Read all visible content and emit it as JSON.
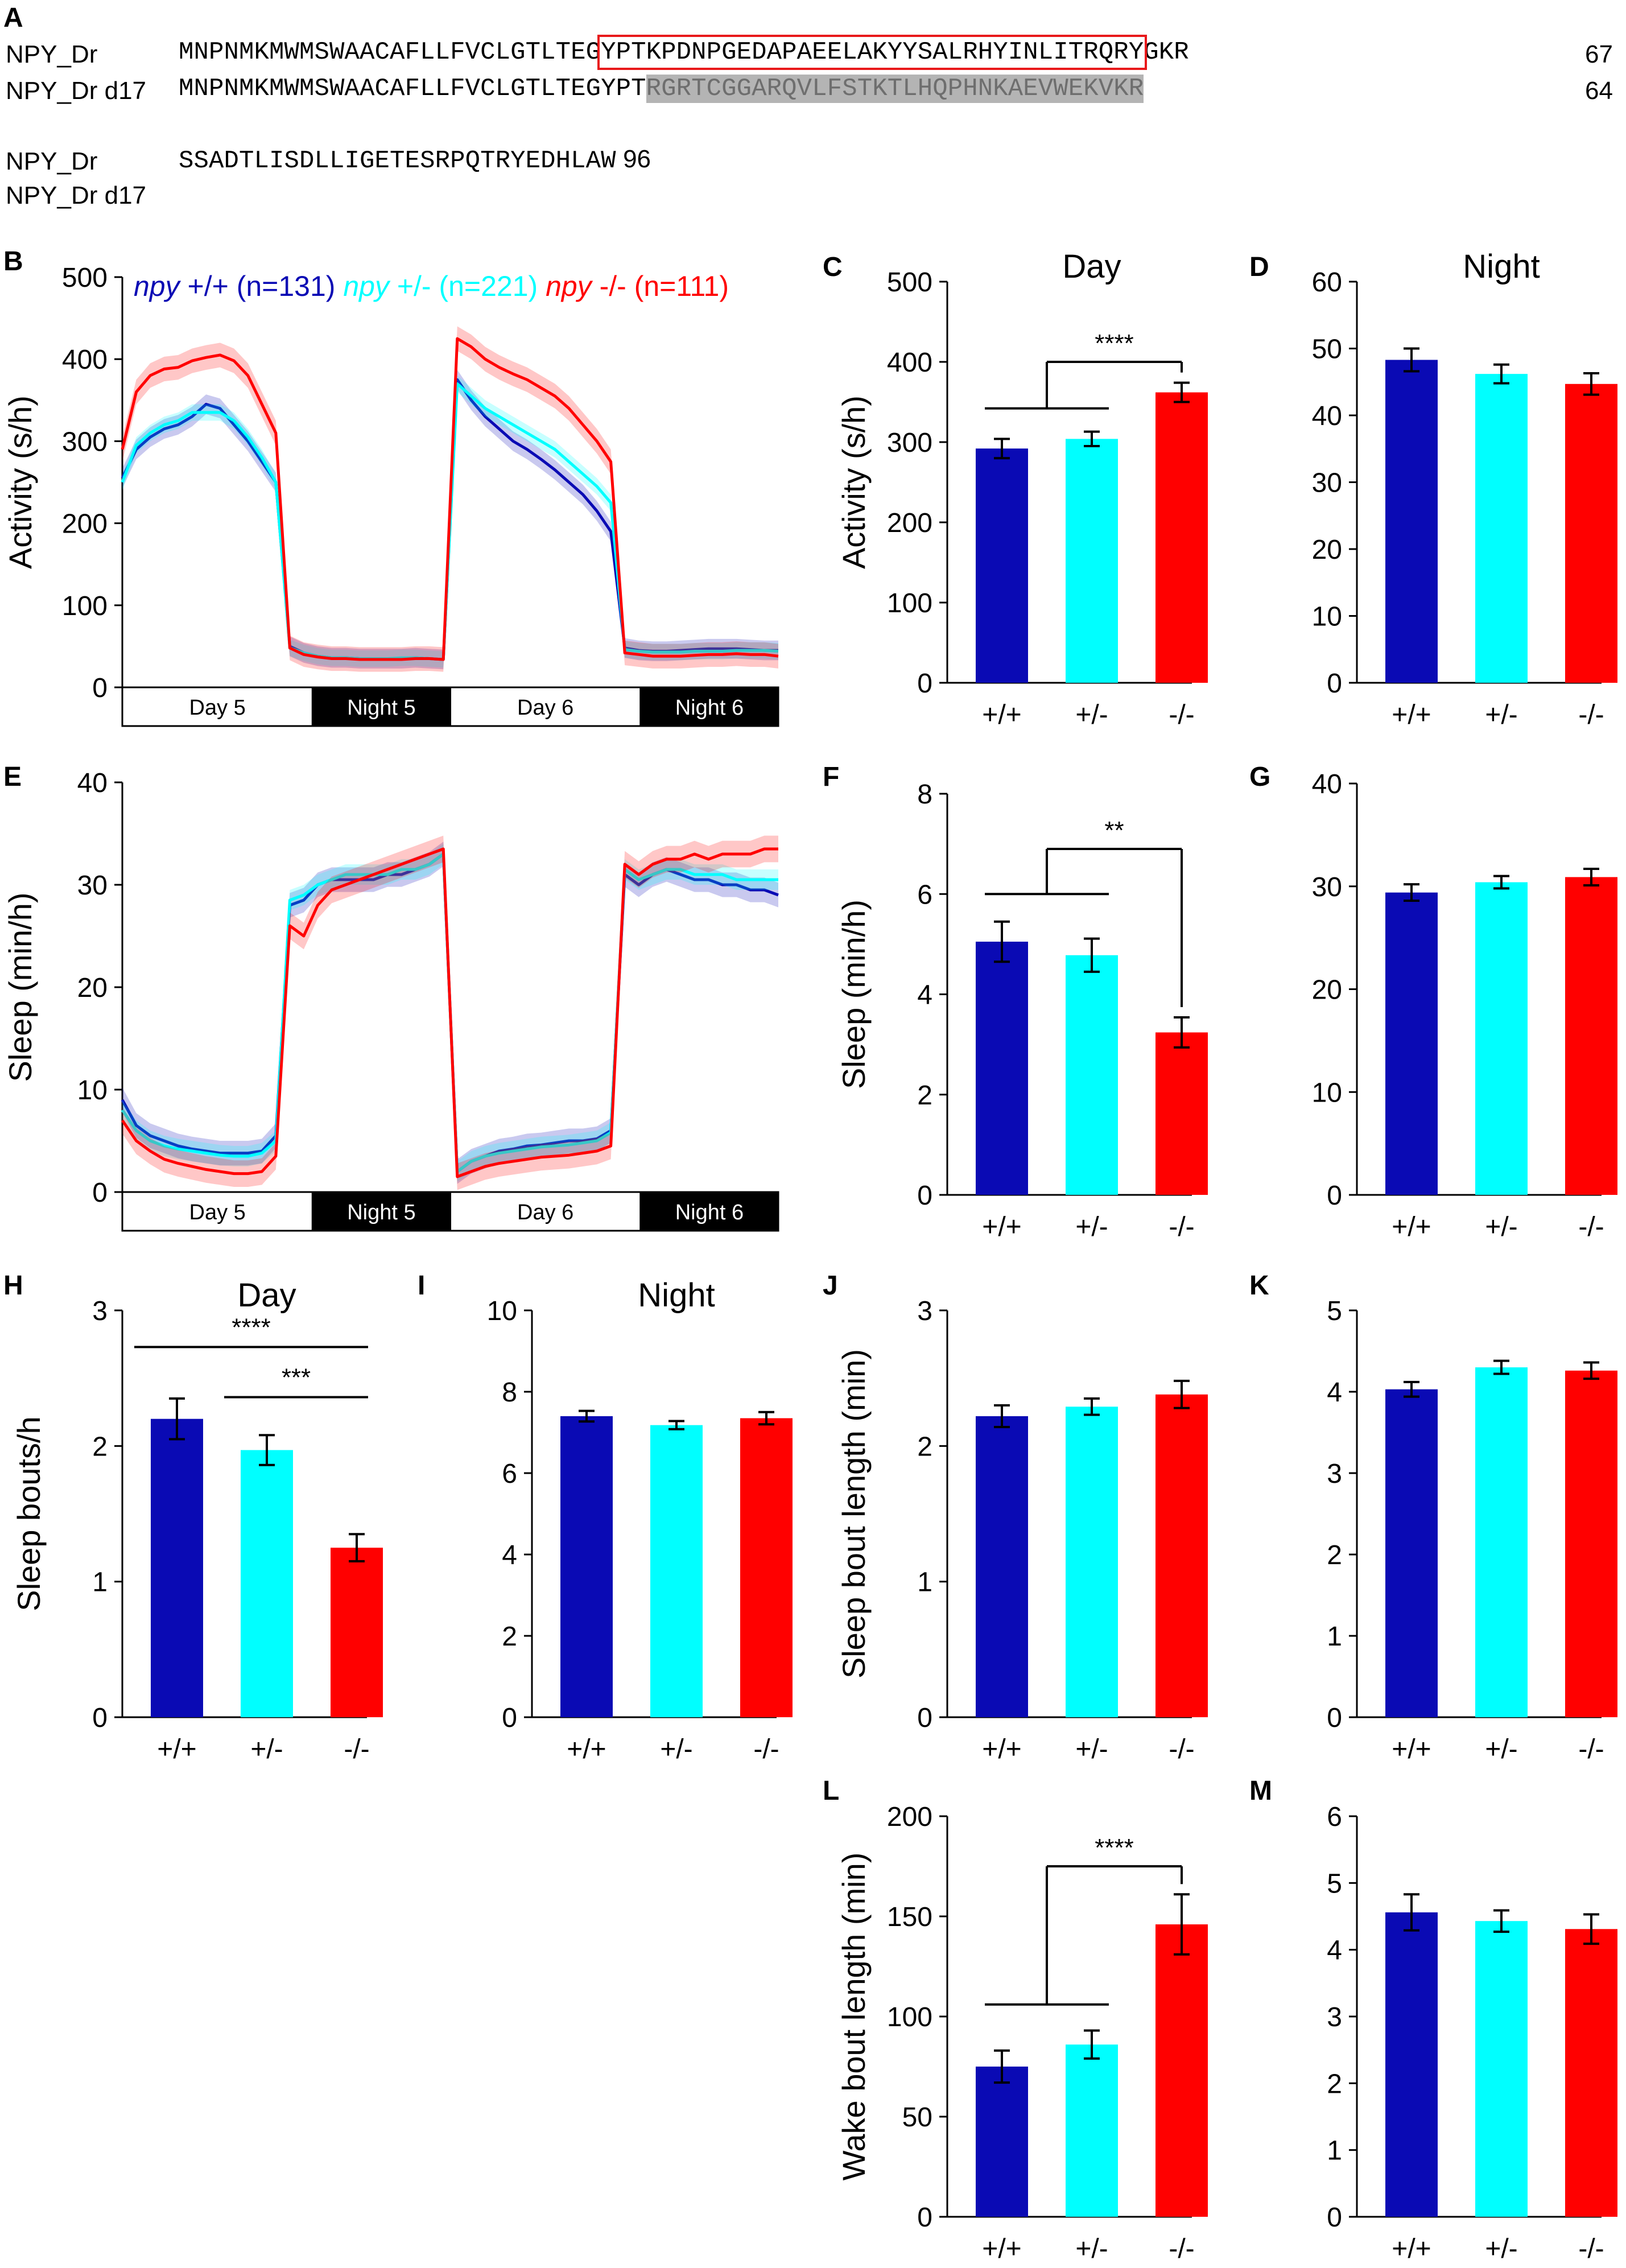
{
  "panel_letters": [
    "A",
    "B",
    "C",
    "D",
    "E",
    "F",
    "G",
    "H",
    "I",
    "J",
    "K",
    "L",
    "M"
  ],
  "sequence_panel": {
    "rows": [
      {
        "name": "NPY_Dr",
        "pre": "MNPNMKMWMSWAACAFLLFVCLGTLTEG",
        "boxed": "YPTKPDNPGEDAPAEELAKYYSALRHYINLITRQRY",
        "post": "GKR",
        "length": "67"
      },
      {
        "name": "NPY_Dr d17",
        "pre": "MNPNMKMWMSWAACAFLLFVCLGTLTEGYPT",
        "shaded": "RGRTCGGARQVLFSTKTLHQPHNKAEVWEKVKR",
        "length": "64"
      },
      {
        "name": "NPY_Dr",
        "pre": "SSADTLISDLLIGETESRPQTRYEDHLAW",
        "length": "96"
      },
      {
        "name": "NPY_Dr d17",
        "pre": ""
      }
    ],
    "box_color": "#e8191b",
    "shade_color": "#b4b4b4"
  },
  "colors": {
    "wt": "#0a0ab4",
    "het": "#00ffff",
    "mut": "#ff0000"
  },
  "chart_data": [
    {
      "id": "B",
      "type": "line",
      "ylabel": "Activity (s/h)",
      "ylim": [
        0,
        500
      ],
      "yticks": [
        0,
        100,
        200,
        300,
        400,
        500
      ],
      "time_blocks": [
        {
          "label": "Day 5",
          "dark": false
        },
        {
          "label": "Night 5",
          "dark": true
        },
        {
          "label": "Day 6",
          "dark": false
        },
        {
          "label": "Night 6",
          "dark": true
        }
      ],
      "legend": [
        {
          "italic": "npy",
          "rest": " +/+ (n=131)",
          "color": "#0a0ab4"
        },
        {
          "italic": "npy",
          "rest": " +/- (n=221)",
          "color": "#00ffff"
        },
        {
          "italic": "npy",
          "rest": " -/- (n=111)",
          "color": "#ff0000"
        }
      ],
      "x": [
        0,
        1,
        2,
        3,
        4,
        5,
        6,
        7,
        8,
        9,
        10,
        11,
        12,
        13,
        14,
        15,
        16,
        17,
        18,
        19,
        20,
        21,
        22,
        23,
        24,
        25,
        26,
        27,
        28,
        29,
        30,
        31,
        32,
        33,
        34,
        35,
        36,
        37,
        38,
        39,
        40,
        41,
        42,
        43,
        44,
        45,
        46,
        47
      ],
      "series": [
        {
          "color": "#0a0ab4",
          "sem": 12,
          "values": [
            255,
            290,
            305,
            315,
            320,
            330,
            345,
            340,
            320,
            300,
            275,
            250,
            50,
            42,
            38,
            36,
            36,
            35,
            35,
            35,
            35,
            36,
            35,
            34,
            375,
            350,
            330,
            315,
            300,
            290,
            278,
            265,
            250,
            235,
            215,
            190,
            48,
            45,
            44,
            44,
            45,
            46,
            47,
            47,
            47,
            46,
            45,
            45
          ]
        },
        {
          "color": "#00ffff",
          "sem": 10,
          "values": [
            250,
            295,
            310,
            320,
            325,
            335,
            335,
            335,
            325,
            305,
            280,
            250,
            48,
            42,
            38,
            36,
            36,
            35,
            35,
            35,
            36,
            36,
            35,
            34,
            370,
            355,
            340,
            330,
            320,
            310,
            300,
            290,
            275,
            260,
            245,
            225,
            46,
            44,
            43,
            43,
            43,
            44,
            44,
            44,
            45,
            45,
            45,
            44
          ]
        },
        {
          "color": "#ff0000",
          "sem": 15,
          "values": [
            290,
            360,
            380,
            388,
            390,
            398,
            402,
            405,
            398,
            380,
            345,
            310,
            48,
            40,
            37,
            35,
            35,
            34,
            34,
            34,
            34,
            35,
            35,
            34,
            425,
            415,
            400,
            390,
            382,
            375,
            365,
            355,
            340,
            320,
            300,
            275,
            42,
            40,
            38,
            38,
            38,
            39,
            40,
            40,
            41,
            40,
            40,
            38
          ]
        }
      ]
    },
    {
      "id": "C",
      "type": "bar",
      "title": "Day",
      "ylabel": "Activity (s/h)",
      "ylim": [
        0,
        500
      ],
      "yticks": [
        0,
        100,
        200,
        300,
        400,
        500
      ],
      "categories": [
        "+/+",
        "+/-",
        "-/-"
      ],
      "values": [
        292,
        304,
        362
      ],
      "errors": [
        12,
        9,
        12
      ],
      "sig": [
        {
          "kind": "group",
          "label": "****",
          "y": 400,
          "bar_y": 342
        }
      ]
    },
    {
      "id": "D",
      "type": "bar",
      "title": "Night",
      "ylabel": "",
      "ylim": [
        0,
        60
      ],
      "yticks": [
        0,
        10,
        20,
        30,
        40,
        50,
        60
      ],
      "categories": [
        "+/+",
        "+/-",
        "-/-"
      ],
      "values": [
        48.3,
        46.2,
        44.7
      ],
      "errors": [
        1.7,
        1.4,
        1.6
      ],
      "sig": []
    },
    {
      "id": "E",
      "type": "line",
      "ylabel": "Sleep (min/h)",
      "ylim": [
        0,
        40
      ],
      "yticks": [
        0,
        10,
        20,
        30,
        40
      ],
      "time_blocks": [
        {
          "label": "Day 5",
          "dark": false
        },
        {
          "label": "Night 5",
          "dark": true
        },
        {
          "label": "Day 6",
          "dark": false
        },
        {
          "label": "Night 6",
          "dark": true
        }
      ],
      "legend": [],
      "x": [
        0,
        1,
        2,
        3,
        4,
        5,
        6,
        7,
        8,
        9,
        10,
        11,
        12,
        13,
        14,
        15,
        16,
        17,
        18,
        19,
        20,
        21,
        22,
        23,
        24,
        25,
        26,
        27,
        28,
        29,
        30,
        31,
        32,
        33,
        34,
        35,
        36,
        37,
        38,
        39,
        40,
        41,
        42,
        43,
        44,
        45,
        46,
        47
      ],
      "series": [
        {
          "color": "#0a0ab4",
          "sem": 1.2,
          "values": [
            9,
            6.5,
            5.5,
            5,
            4.5,
            4.2,
            4,
            3.8,
            3.8,
            3.8,
            4,
            5.5,
            28,
            28.5,
            30,
            30.5,
            30.5,
            30.5,
            30.5,
            31,
            31,
            31.5,
            32,
            33,
            2,
            3,
            3.5,
            4,
            4.2,
            4.5,
            4.6,
            4.8,
            5,
            5,
            5.2,
            6,
            31,
            30,
            31,
            31.5,
            31,
            30.5,
            30.5,
            30,
            30,
            29.5,
            29.5,
            29
          ]
        },
        {
          "color": "#00ffff",
          "sem": 1.0,
          "values": [
            8,
            6,
            5,
            4.5,
            4.2,
            4,
            3.8,
            3.6,
            3.5,
            3.5,
            3.8,
            5,
            28.5,
            29,
            30,
            30.5,
            31,
            31,
            31,
            31,
            31.5,
            31.5,
            32,
            33,
            2,
            3,
            3.5,
            3.8,
            4,
            4.2,
            4.4,
            4.5,
            4.6,
            4.8,
            5,
            5.8,
            31.5,
            30.5,
            31,
            31.5,
            31.5,
            31,
            31,
            31,
            30.5,
            30.5,
            30.5,
            30.5
          ]
        },
        {
          "color": "#ff0000",
          "sem": 1.3,
          "values": [
            7,
            5,
            4,
            3.2,
            2.8,
            2.5,
            2.2,
            2,
            1.8,
            1.8,
            2,
            3.5,
            26,
            25,
            28,
            29.5,
            30,
            30.5,
            31,
            31.5,
            32,
            32.5,
            33,
            33.5,
            1.5,
            2,
            2.5,
            2.8,
            3,
            3.2,
            3.4,
            3.5,
            3.6,
            3.8,
            4,
            4.5,
            32,
            31,
            32,
            32.5,
            32.5,
            33,
            32.5,
            33,
            33,
            33,
            33.5,
            33.5
          ]
        }
      ]
    },
    {
      "id": "F",
      "type": "bar",
      "title": "",
      "ylabel": "Sleep (min/h)",
      "ylim": [
        0,
        8
      ],
      "yticks": [
        0,
        2,
        4,
        6,
        8
      ],
      "categories": [
        "+/+",
        "+/-",
        "-/-"
      ],
      "values": [
        5.05,
        4.78,
        3.24
      ],
      "errors": [
        0.4,
        0.33,
        0.3
      ],
      "sig": [
        {
          "kind": "group",
          "label": "**",
          "y": 6.9,
          "bar_y": 6.0
        }
      ]
    },
    {
      "id": "G",
      "type": "bar",
      "title": "",
      "ylabel": "",
      "ylim": [
        0,
        40
      ],
      "yticks": [
        0,
        10,
        20,
        30,
        40
      ],
      "categories": [
        "+/+",
        "+/-",
        "-/-"
      ],
      "values": [
        29.4,
        30.4,
        30.9
      ],
      "errors": [
        0.8,
        0.6,
        0.8
      ],
      "sig": []
    },
    {
      "id": "H",
      "type": "bar",
      "title": "Day",
      "ylabel": "Sleep bouts/h",
      "ylim": [
        0,
        3
      ],
      "yticks": [
        0,
        1,
        2,
        3
      ],
      "categories": [
        "+/+",
        "+/-",
        "-/-"
      ],
      "values": [
        2.2,
        1.97,
        1.25
      ],
      "errors": [
        0.15,
        0.11,
        0.1
      ],
      "sig": [
        {
          "kind": "line",
          "label": "****",
          "from": 0,
          "to": 2,
          "y": 2.73
        },
        {
          "kind": "line",
          "label": "***",
          "from": 1,
          "to": 2,
          "y": 2.36
        }
      ]
    },
    {
      "id": "I",
      "type": "bar",
      "title": "Night",
      "ylabel": "",
      "ylim": [
        0,
        10
      ],
      "yticks": [
        0,
        2,
        4,
        6,
        8,
        10
      ],
      "categories": [
        "+/+",
        "+/-",
        "-/-"
      ],
      "values": [
        7.4,
        7.18,
        7.35
      ],
      "errors": [
        0.13,
        0.1,
        0.15
      ],
      "sig": []
    },
    {
      "id": "J",
      "type": "bar",
      "title": "",
      "ylabel": "Sleep bout length (min)",
      "ylim": [
        0,
        3
      ],
      "yticks": [
        0,
        1,
        2,
        3
      ],
      "categories": [
        "+/+",
        "+/-",
        "-/-"
      ],
      "values": [
        2.22,
        2.29,
        2.38
      ],
      "errors": [
        0.08,
        0.06,
        0.1
      ],
      "sig": []
    },
    {
      "id": "K",
      "type": "bar",
      "title": "",
      "ylabel": "",
      "ylim": [
        0,
        5
      ],
      "yticks": [
        0,
        1,
        2,
        3,
        4,
        5
      ],
      "categories": [
        "+/+",
        "+/-",
        "-/-"
      ],
      "values": [
        4.03,
        4.3,
        4.26
      ],
      "errors": [
        0.09,
        0.08,
        0.1
      ],
      "sig": []
    },
    {
      "id": "L",
      "type": "bar",
      "title": "",
      "ylabel": "Wake bout length (min)",
      "ylim": [
        0,
        200
      ],
      "yticks": [
        0,
        50,
        100,
        150,
        200
      ],
      "categories": [
        "+/+",
        "+/-",
        "-/-"
      ],
      "values": [
        75,
        86,
        146
      ],
      "errors": [
        8,
        7,
        15
      ],
      "sig": [
        {
          "kind": "group",
          "label": "****",
          "y": 175,
          "bar_y": 106
        }
      ]
    },
    {
      "id": "M",
      "type": "bar",
      "title": "",
      "ylabel": "",
      "ylim": [
        0,
        6
      ],
      "yticks": [
        0,
        1,
        2,
        3,
        4,
        5,
        6
      ],
      "categories": [
        "+/+",
        "+/-",
        "-/-"
      ],
      "values": [
        4.56,
        4.43,
        4.31
      ],
      "errors": [
        0.27,
        0.16,
        0.22
      ],
      "sig": []
    }
  ]
}
